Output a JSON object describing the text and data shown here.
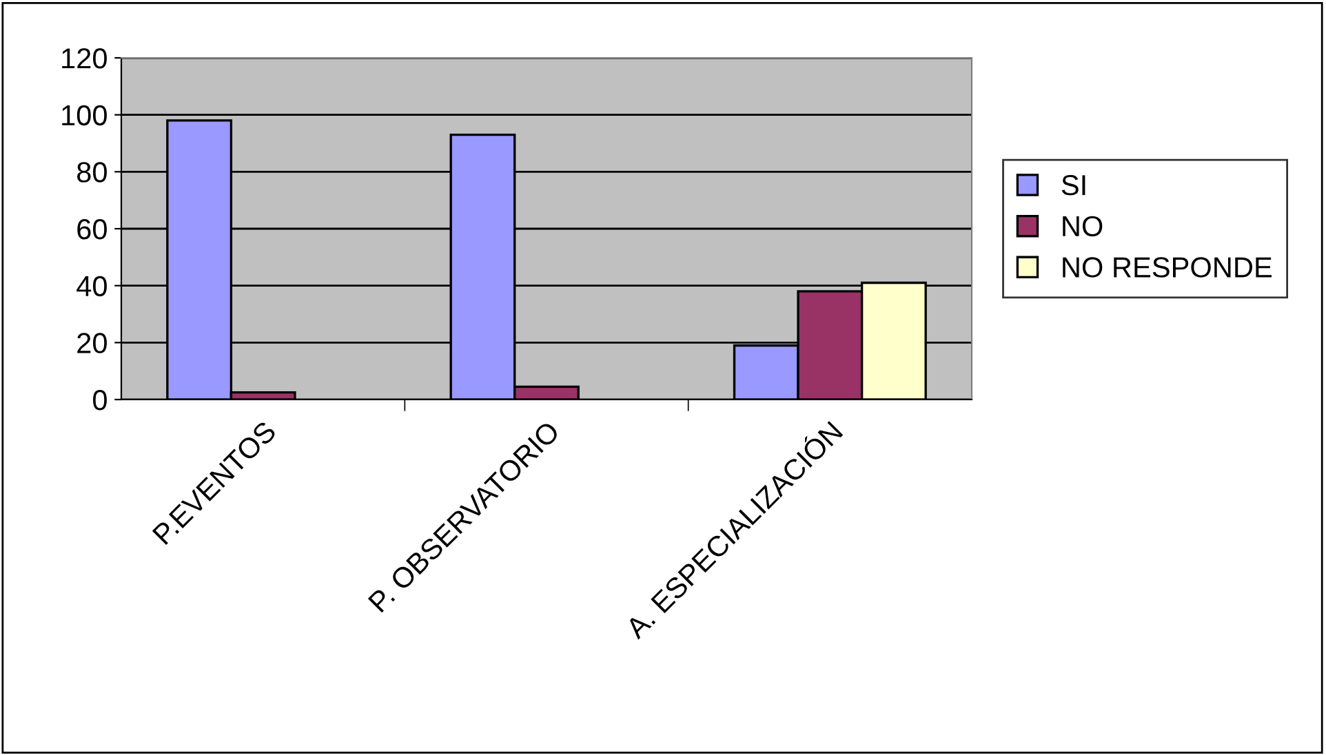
{
  "chart_data": {
    "type": "bar",
    "categories": [
      "P.EVENTOS",
      "P. OBSERVATORIO",
      "A. ESPECIALIZACIÓN"
    ],
    "series": [
      {
        "name": "SI",
        "color": "#9999ff",
        "values": [
          98,
          93,
          19
        ]
      },
      {
        "name": "NO",
        "color": "#993366",
        "values": [
          2.5,
          4.5,
          38
        ]
      },
      {
        "name": "NO RESPONDE",
        "color": "#ffffcc",
        "values": [
          null,
          null,
          41
        ]
      }
    ],
    "ylim": [
      0,
      120
    ],
    "yticks": [
      0,
      20,
      40,
      60,
      80,
      100,
      120
    ],
    "grid": "y",
    "legend": "right"
  }
}
